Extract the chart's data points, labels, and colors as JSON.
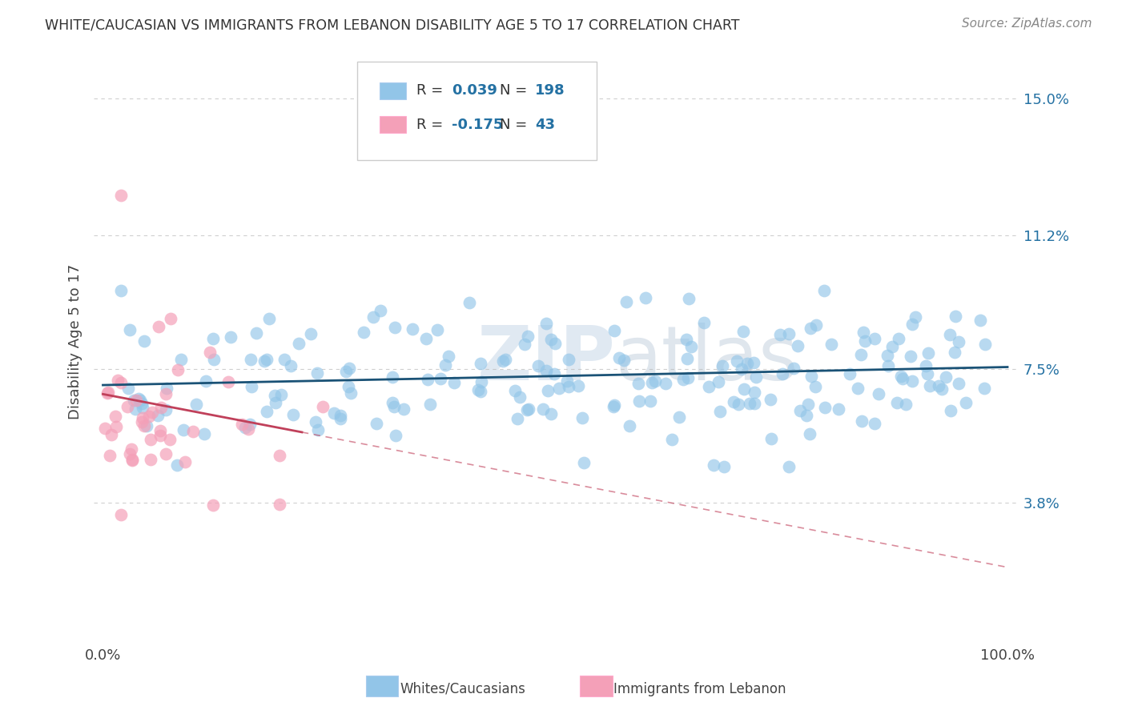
{
  "title": "WHITE/CAUCASIAN VS IMMIGRANTS FROM LEBANON DISABILITY AGE 5 TO 17 CORRELATION CHART",
  "source": "Source: ZipAtlas.com",
  "ylabel": "Disability Age 5 to 17",
  "watermark_zip": "ZIP",
  "watermark_atlas": "atlas",
  "blue_R": 0.039,
  "blue_N": 198,
  "pink_R": -0.175,
  "pink_N": 43,
  "blue_color": "#92C5E8",
  "pink_color": "#F4A0B8",
  "blue_line_color": "#1A5276",
  "pink_line_color": "#C0405A",
  "yticks": [
    3.8,
    7.5,
    11.2,
    15.0
  ],
  "ytick_labels": [
    "3.8%",
    "7.5%",
    "11.2%",
    "15.0%"
  ],
  "xlim": [
    0,
    100
  ],
  "ylim": [
    0,
    16.5
  ],
  "xtick_positions": [
    0,
    100
  ],
  "xtick_labels": [
    "0.0%",
    "100.0%"
  ],
  "legend_labels": [
    "Whites/Caucasians",
    "Immigrants from Lebanon"
  ],
  "grid_color": "#BBBBBB",
  "background_color": "#FFFFFF",
  "legend_text_color": "#2471A3",
  "title_color": "#333333",
  "source_color": "#888888",
  "blue_line_y": 7.3,
  "pink_line_start_y": 6.8,
  "pink_line_slope": -0.035
}
